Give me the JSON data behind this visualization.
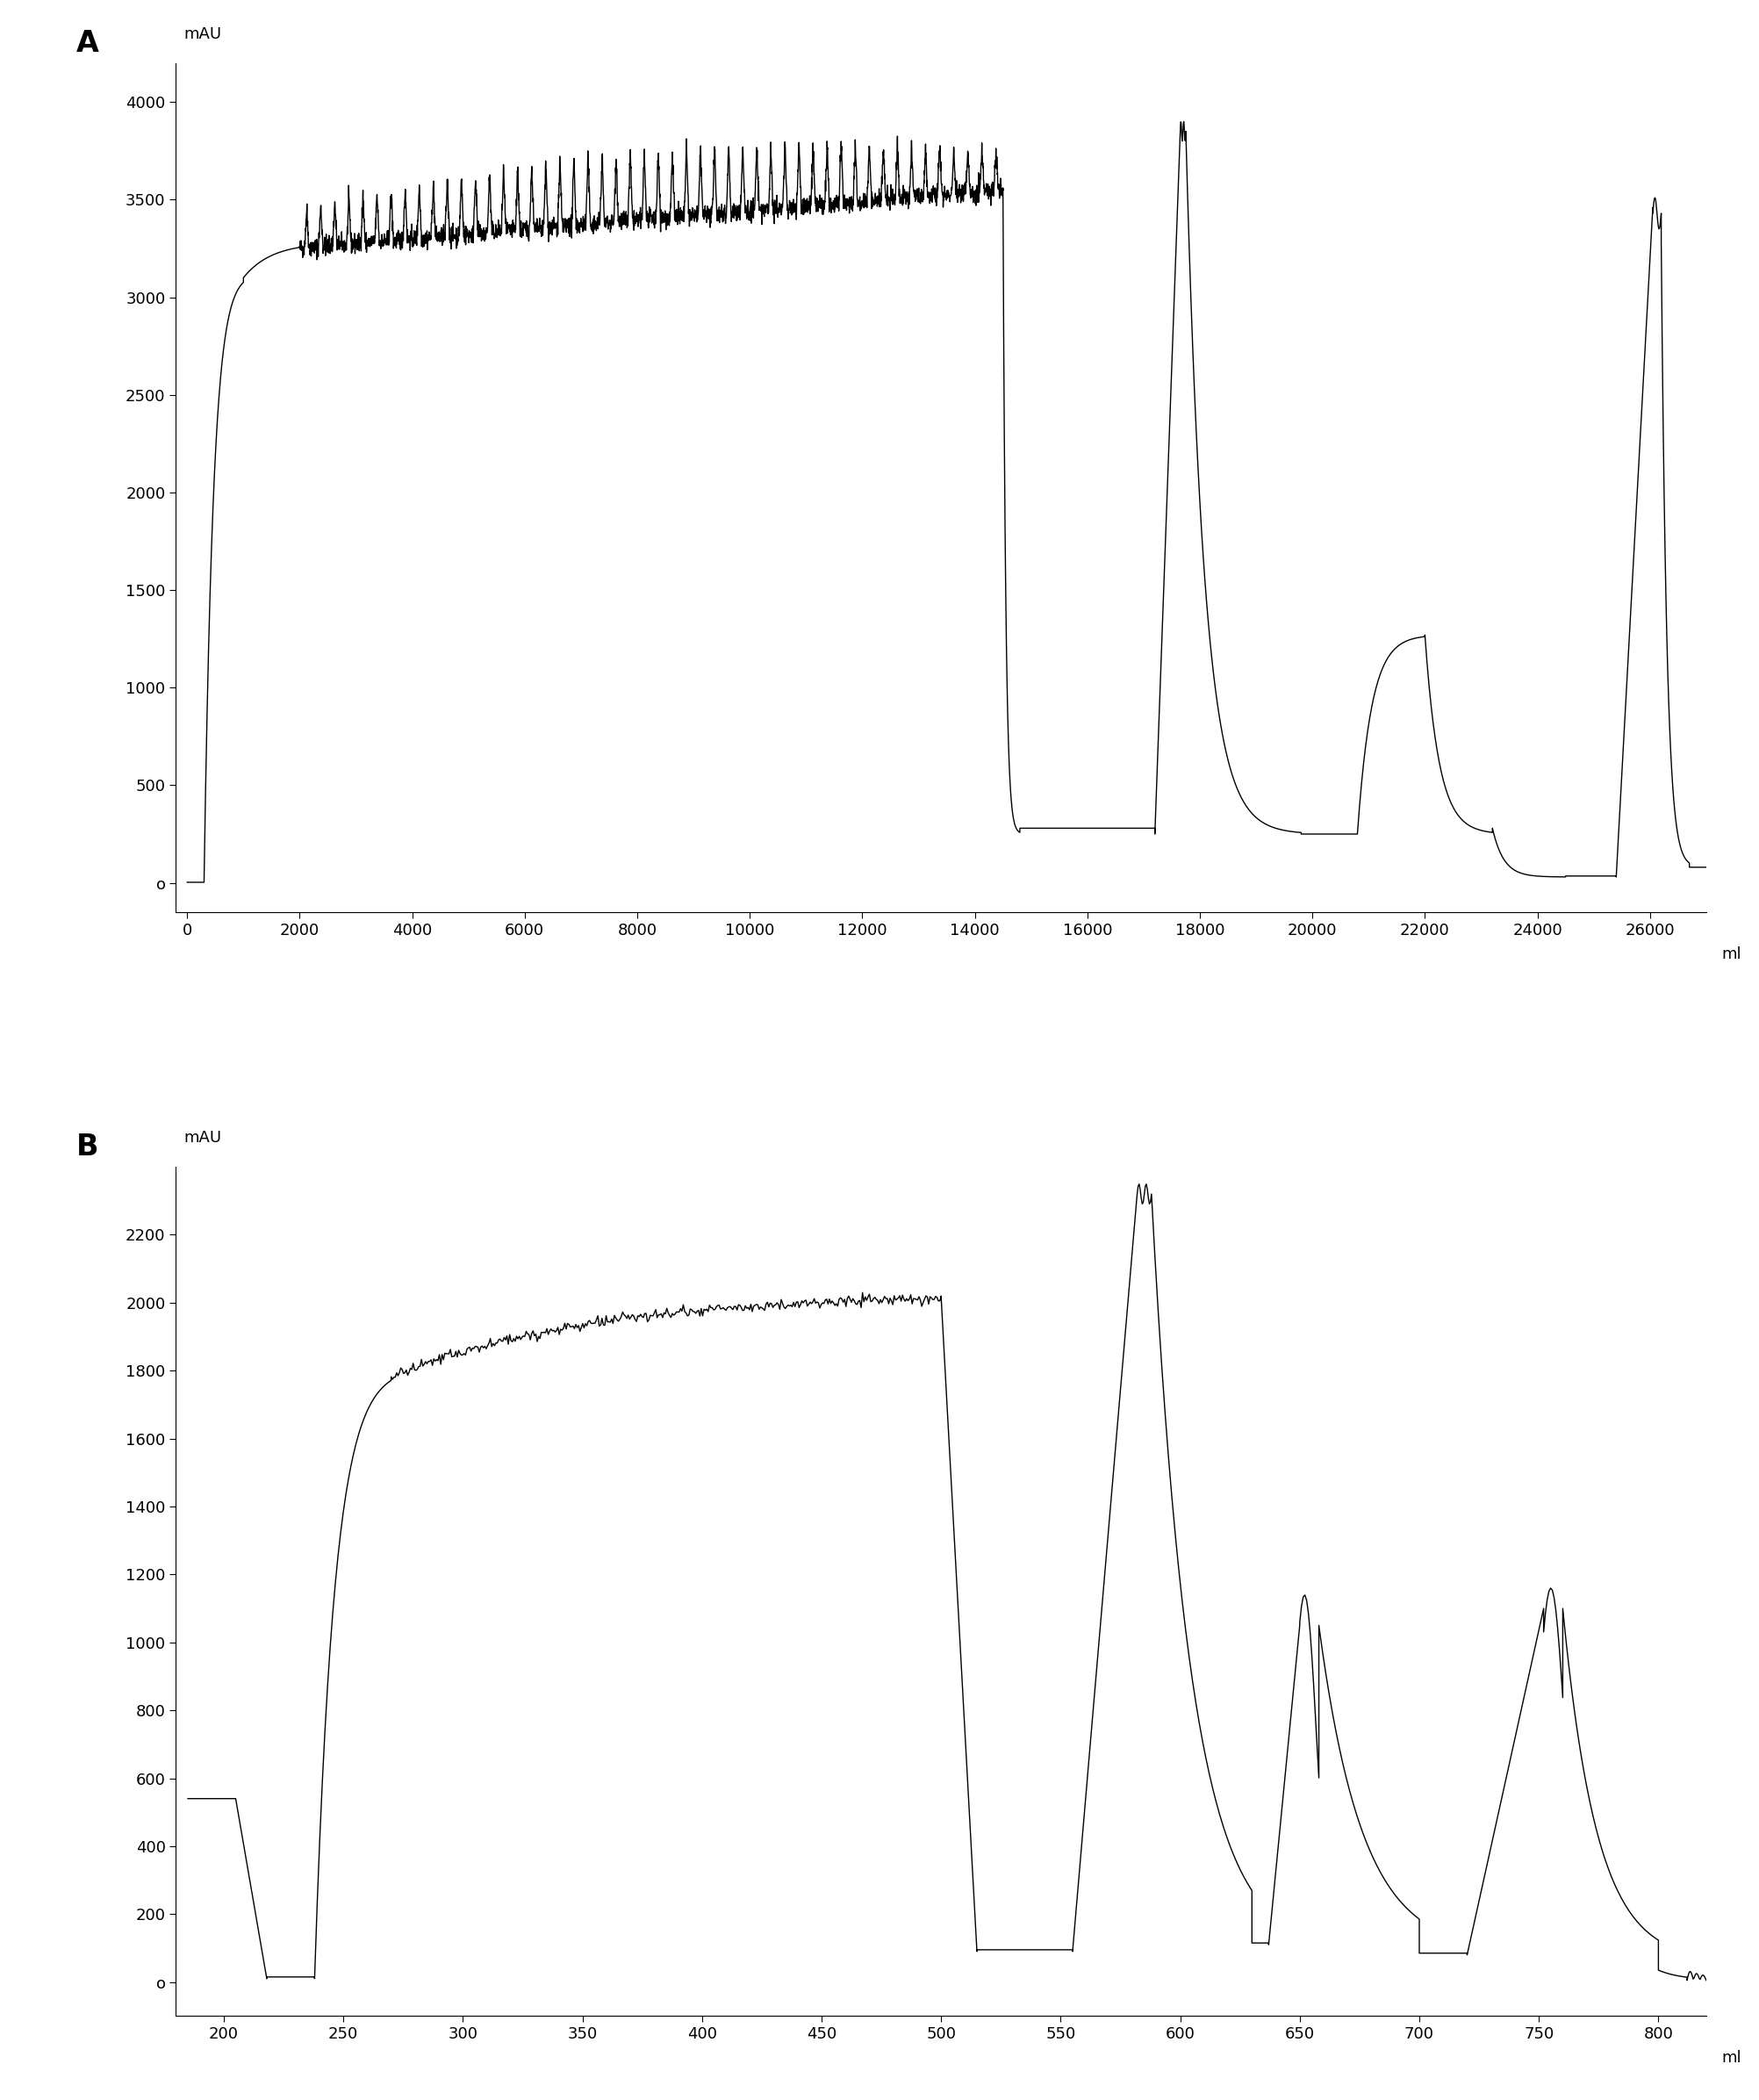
{
  "panel_A": {
    "xlabel": "ml",
    "ylabel": "mAU",
    "xlim": [
      -200,
      27000
    ],
    "ylim": [
      -150,
      4200
    ],
    "xticks": [
      0,
      2000,
      4000,
      6000,
      8000,
      10000,
      12000,
      14000,
      16000,
      18000,
      20000,
      22000,
      24000,
      26000
    ],
    "yticks": [
      0,
      500,
      1000,
      1500,
      2000,
      2500,
      3000,
      3500,
      4000
    ],
    "label": "A"
  },
  "panel_B": {
    "xlabel": "ml",
    "ylabel": "mAU",
    "xlim": [
      180,
      820
    ],
    "ylim": [
      -100,
      2400
    ],
    "xticks": [
      200,
      250,
      300,
      350,
      400,
      450,
      500,
      550,
      600,
      650,
      700,
      750,
      800
    ],
    "yticks": [
      0,
      200,
      400,
      600,
      800,
      1000,
      1200,
      1400,
      1600,
      1800,
      2000,
      2200
    ],
    "label": "B"
  },
  "line_color": "#000000",
  "line_width": 1.0,
  "background_color": "#ffffff",
  "tick_fontsize": 13,
  "label_fontsize": 13
}
